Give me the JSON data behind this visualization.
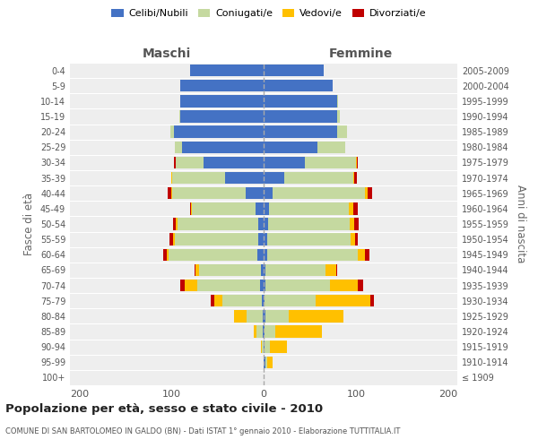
{
  "age_groups": [
    "100+",
    "95-99",
    "90-94",
    "85-89",
    "80-84",
    "75-79",
    "70-74",
    "65-69",
    "60-64",
    "55-59",
    "50-54",
    "45-49",
    "40-44",
    "35-39",
    "30-34",
    "25-29",
    "20-24",
    "15-19",
    "10-14",
    "5-9",
    "0-4"
  ],
  "birth_years": [
    "≤ 1909",
    "1910-1914",
    "1915-1919",
    "1920-1924",
    "1925-1929",
    "1930-1934",
    "1935-1939",
    "1940-1944",
    "1945-1949",
    "1950-1954",
    "1955-1959",
    "1960-1964",
    "1965-1969",
    "1970-1974",
    "1975-1979",
    "1980-1984",
    "1985-1989",
    "1990-1994",
    "1995-1999",
    "2000-2004",
    "2005-2009"
  ],
  "colors": {
    "celibe": "#4472c4",
    "coniugato": "#c5d9a0",
    "vedovo": "#ffc000",
    "divorziato": "#c00000"
  },
  "maschi": {
    "celibe": [
      0,
      0,
      0,
      1,
      1,
      2,
      4,
      3,
      7,
      6,
      6,
      9,
      19,
      42,
      65,
      88,
      97,
      90,
      90,
      90,
      80
    ],
    "coniugato": [
      0,
      0,
      2,
      7,
      17,
      43,
      68,
      67,
      96,
      90,
      87,
      69,
      80,
      57,
      30,
      8,
      4,
      1,
      0,
      0,
      0
    ],
    "vedovo": [
      0,
      0,
      1,
      3,
      14,
      8,
      14,
      4,
      2,
      2,
      2,
      1,
      1,
      1,
      0,
      0,
      0,
      0,
      0,
      0,
      0
    ],
    "divorziato": [
      0,
      0,
      0,
      0,
      0,
      4,
      4,
      1,
      4,
      4,
      3,
      1,
      4,
      0,
      2,
      0,
      0,
      0,
      0,
      0,
      0
    ]
  },
  "femmine": {
    "celibe": [
      0,
      2,
      1,
      1,
      2,
      1,
      2,
      2,
      4,
      4,
      5,
      6,
      10,
      22,
      45,
      58,
      80,
      80,
      80,
      75,
      65
    ],
    "coniugato": [
      0,
      2,
      6,
      12,
      25,
      55,
      70,
      65,
      98,
      90,
      88,
      86,
      100,
      75,
      55,
      30,
      10,
      3,
      1,
      0,
      0
    ],
    "vedovo": [
      0,
      6,
      18,
      50,
      60,
      60,
      30,
      12,
      8,
      5,
      5,
      5,
      3,
      1,
      1,
      0,
      0,
      0,
      0,
      0,
      0
    ],
    "divorziato": [
      0,
      0,
      0,
      0,
      0,
      4,
      6,
      1,
      5,
      3,
      5,
      5,
      5,
      3,
      1,
      0,
      0,
      0,
      0,
      0,
      0
    ]
  },
  "xlim": 210,
  "title": "Popolazione per età, sesso e stato civile - 2010",
  "subtitle": "COMUNE DI SAN BARTOLOMEO IN GALDO (BN) - Dati ISTAT 1° gennaio 2010 - Elaborazione TUTTITALIA.IT",
  "ylabel_left": "Fasce di età",
  "ylabel_right": "Anni di nascita",
  "header_maschi": "Maschi",
  "header_femmine": "Femmine"
}
